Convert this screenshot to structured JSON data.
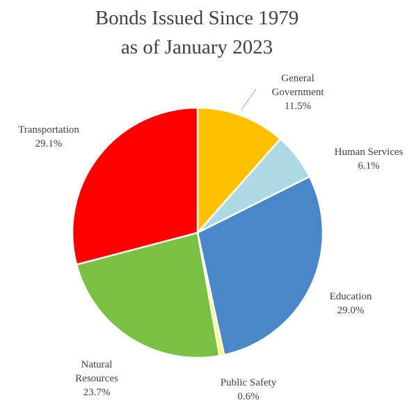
{
  "chart_data": {
    "type": "pie",
    "title": [
      "Bonds Issued Since 1979",
      "as of January 2023"
    ],
    "legend": "none",
    "slices": [
      {
        "label": [
          "General",
          "Government"
        ],
        "value_label": "11.5%",
        "value": 11.5,
        "color": "#FFC000"
      },
      {
        "label": [
          "Human Services"
        ],
        "value_label": "6.1%",
        "value": 6.1,
        "color": "#ADD8E6"
      },
      {
        "label": [
          "Education"
        ],
        "value_label": "29.0%",
        "value": 29.0,
        "color": "#4A86C8"
      },
      {
        "label": [
          "Public Safety"
        ],
        "value_label": "0.6%",
        "value": 0.6,
        "color": "#FFFF66"
      },
      {
        "label": [
          "Natural",
          "Resources"
        ],
        "value_label": "23.7%",
        "value": 23.7,
        "color": "#7AC143"
      },
      {
        "label": [
          "Transportation"
        ],
        "value_label": "29.1%",
        "value": 29.1,
        "color": "#FF0000"
      }
    ]
  }
}
